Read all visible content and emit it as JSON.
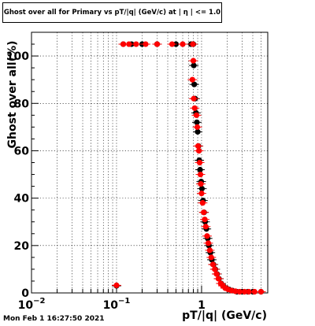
{
  "chart_data": {
    "type": "scatter",
    "title": "Ghost over all for Primary vs pT/|q| (GeV/c) at | η | <= 1.0",
    "xlabel": "pT/|q| (GeV/c)",
    "ylabel": "Ghost over all(%)",
    "x_scale": "log",
    "xlim": [
      0.01,
      6.0
    ],
    "ylim": [
      0,
      110
    ],
    "grid": true,
    "x_ticks": [
      {
        "value": 0.01,
        "base": "10",
        "exp": "−2"
      },
      {
        "value": 0.1,
        "base": "10",
        "exp": "−1"
      },
      {
        "value": 1,
        "base": "1",
        "exp": ""
      }
    ],
    "y_ticks": [
      0,
      20,
      40,
      60,
      80,
      100
    ],
    "series": [
      {
        "color": "#000000",
        "points": [
          [
            0.1,
            3
          ],
          [
            0.12,
            105
          ],
          [
            0.15,
            105
          ],
          [
            0.2,
            105
          ],
          [
            0.3,
            105
          ],
          [
            0.5,
            105
          ],
          [
            0.75,
            105
          ],
          [
            0.8,
            105
          ],
          [
            0.81,
            96
          ],
          [
            0.82,
            88
          ],
          [
            0.84,
            82
          ],
          [
            0.86,
            76
          ],
          [
            0.88,
            72
          ],
          [
            0.9,
            68
          ],
          [
            0.92,
            62
          ],
          [
            0.94,
            56
          ],
          [
            0.96,
            52
          ],
          [
            0.99,
            47
          ],
          [
            1.01,
            44
          ],
          [
            1.04,
            39
          ],
          [
            1.07,
            34
          ],
          [
            1.1,
            30
          ],
          [
            1.14,
            27
          ],
          [
            1.18,
            23
          ],
          [
            1.22,
            20
          ],
          [
            1.27,
            17
          ],
          [
            1.32,
            14
          ],
          [
            1.38,
            12
          ],
          [
            1.45,
            10
          ],
          [
            1.52,
            8
          ],
          [
            1.6,
            6
          ],
          [
            1.7,
            4
          ],
          [
            1.8,
            3
          ],
          [
            1.95,
            2
          ],
          [
            2.1,
            1.5
          ],
          [
            2.3,
            1
          ],
          [
            2.6,
            0.5
          ],
          [
            3.0,
            0.5
          ],
          [
            3.5,
            0.5
          ],
          [
            4.0,
            0.5
          ],
          [
            5.0,
            0.5
          ]
        ]
      },
      {
        "color": "#ff0000",
        "points": [
          [
            0.1,
            3.2
          ],
          [
            0.12,
            105
          ],
          [
            0.14,
            105
          ],
          [
            0.17,
            105
          ],
          [
            0.22,
            105
          ],
          [
            0.3,
            105
          ],
          [
            0.45,
            105
          ],
          [
            0.6,
            105
          ],
          [
            0.79,
            105
          ],
          [
            0.8,
            98
          ],
          [
            0.78,
            90
          ],
          [
            0.81,
            82
          ],
          [
            0.83,
            78
          ],
          [
            0.87,
            75
          ],
          [
            0.89,
            70
          ],
          [
            0.91,
            62
          ],
          [
            0.93,
            60
          ],
          [
            0.95,
            55
          ],
          [
            0.97,
            50
          ],
          [
            0.98,
            46
          ],
          [
            1.0,
            42
          ],
          [
            1.03,
            38
          ],
          [
            1.06,
            34
          ],
          [
            1.09,
            31
          ],
          [
            1.12,
            28
          ],
          [
            1.16,
            24
          ],
          [
            1.2,
            21
          ],
          [
            1.25,
            18
          ],
          [
            1.3,
            15
          ],
          [
            1.36,
            12
          ],
          [
            1.43,
            10
          ],
          [
            1.5,
            8
          ],
          [
            1.58,
            6
          ],
          [
            1.68,
            4
          ],
          [
            1.78,
            3
          ],
          [
            1.9,
            2
          ],
          [
            2.05,
            1.5
          ],
          [
            2.25,
            1
          ],
          [
            2.5,
            0.7
          ],
          [
            2.8,
            0.5
          ],
          [
            3.2,
            0.5
          ],
          [
            3.6,
            0.5
          ],
          [
            4.2,
            0.5
          ],
          [
            5.0,
            0.5
          ]
        ]
      }
    ]
  },
  "footer": {
    "timestamp": "Mon Feb  1 16:27:50 2021"
  }
}
